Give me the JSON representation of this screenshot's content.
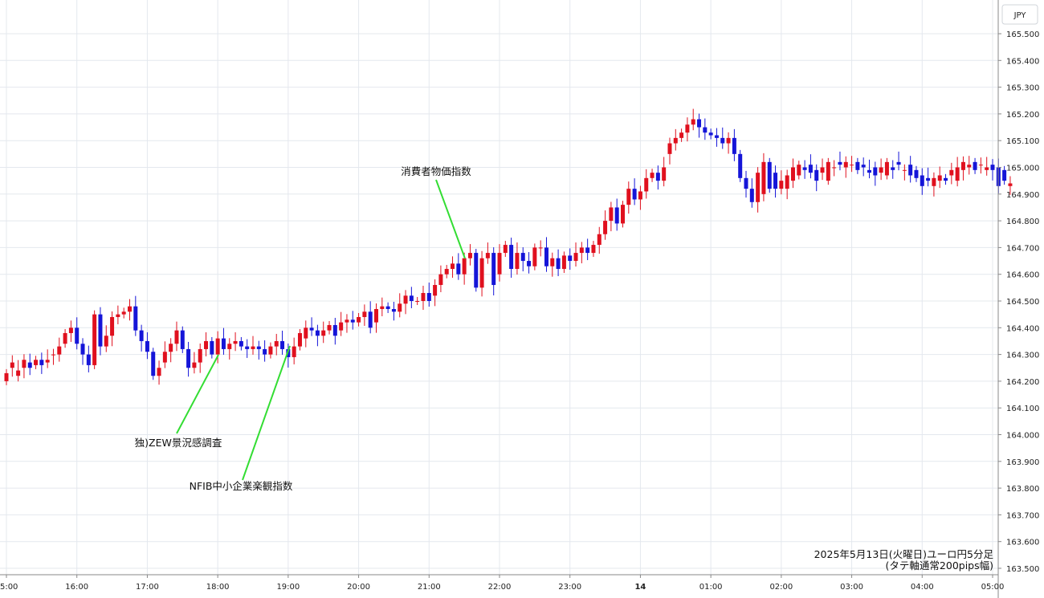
{
  "chart_data": {
    "type": "candlestick",
    "title": "2025年5月13日(火曜日)ユーロ円5分足",
    "subtitle": "(タテ軸通常200pips幅)",
    "currency_label": "JPY",
    "ylim": [
      163.45,
      165.65
    ],
    "y_ticks": [
      "165.500",
      "165.400",
      "165.300",
      "165.200",
      "165.100",
      "165.000",
      "164.900",
      "164.800",
      "164.700",
      "164.600",
      "164.500",
      "164.400",
      "164.300",
      "164.200",
      "164.100",
      "164.000",
      "163.900",
      "163.800",
      "163.700",
      "163.600",
      "163.500"
    ],
    "x_ticks": [
      "15:00",
      "16:00",
      "17:00",
      "18:00",
      "19:00",
      "20:00",
      "21:00",
      "22:00",
      "23:00",
      "14",
      "01:00",
      "02:00",
      "03:00",
      "04:00",
      "05:00"
    ],
    "grid": true,
    "colors": {
      "up": "#e0101e",
      "down": "#1515d8",
      "grid": "#e4e8ee",
      "annotation_line": "#33dd33"
    },
    "annotations": [
      {
        "label": "独)ZEW景況感調査",
        "time": "18:00"
      },
      {
        "label": "NFIB中小企業楽観指数",
        "time": "19:00"
      },
      {
        "label": "消費者物価指数",
        "time": "21:30"
      }
    ],
    "ohlc_close": [
      164.23,
      164.27,
      164.24,
      164.28,
      164.25,
      164.28,
      164.26,
      164.28,
      164.3,
      164.33,
      164.38,
      164.4,
      164.34,
      164.3,
      164.26,
      164.45,
      164.33,
      164.37,
      164.44,
      164.45,
      164.46,
      164.48,
      164.39,
      164.35,
      164.31,
      164.22,
      164.25,
      164.31,
      164.34,
      164.39,
      164.32,
      164.25,
      164.27,
      164.32,
      164.35,
      164.3,
      164.36,
      164.32,
      164.34,
      164.35,
      164.33,
      164.32,
      164.33,
      164.32,
      164.3,
      164.33,
      164.35,
      164.32,
      164.29,
      164.33,
      164.38,
      164.4,
      164.39,
      164.37,
      164.39,
      164.41,
      164.37,
      164.42,
      164.43,
      164.42,
      164.44,
      164.46,
      164.4,
      164.47,
      164.48,
      164.47,
      164.46,
      164.49,
      164.52,
      164.5,
      164.5,
      164.53,
      164.5,
      164.56,
      164.6,
      164.62,
      164.64,
      164.6,
      164.66,
      164.68,
      164.55,
      164.66,
      164.68,
      164.56,
      164.68,
      164.71,
      164.62,
      164.68,
      164.65,
      164.63,
      164.7,
      164.7,
      164.63,
      164.66,
      164.62,
      164.67,
      164.65,
      164.68,
      164.7,
      164.68,
      164.71,
      164.75,
      164.8,
      164.85,
      164.79,
      164.86,
      164.92,
      164.88,
      164.91,
      164.96,
      164.98,
      164.95,
      165.0,
      165.09,
      165.11,
      165.13,
      165.16,
      165.18,
      165.15,
      165.13,
      165.12,
      165.11,
      165.09,
      165.11,
      165.05,
      164.96,
      164.92,
      164.87,
      164.98,
      165.02,
      164.92,
      164.92,
      164.95,
      164.97,
      165.0,
      165.01,
      164.99,
      164.98,
      164.95,
      165.0,
      165.02,
      165.0,
      165.01,
      165.02,
      165.01,
      164.99,
      165.0,
      164.98,
      164.97,
      165.0,
      165.02,
      164.99,
      165.01,
      164.99,
      164.97,
      164.96,
      164.93,
      164.95,
      164.96,
      164.97,
      164.95,
      164.99,
      165.0,
      165.02,
      165.01,
      164.99,
      165.01,
      165.0,
      164.99,
      164.93,
      164.95,
      164.94
    ],
    "ohlc_open": [
      164.2,
      164.25,
      164.22,
      164.25,
      164.27,
      164.26,
      164.28,
      164.27,
      164.3,
      164.3,
      164.34,
      164.38,
      164.4,
      164.34,
      164.3,
      164.26,
      164.45,
      164.33,
      164.37,
      164.44,
      164.45,
      164.46,
      164.48,
      164.39,
      164.35,
      164.31,
      164.22,
      164.27,
      164.31,
      164.34,
      164.39,
      164.32,
      164.25,
      164.27,
      164.32,
      164.35,
      164.3,
      164.36,
      164.32,
      164.34,
      164.35,
      164.33,
      164.32,
      164.33,
      164.32,
      164.3,
      164.33,
      164.35,
      164.32,
      164.29,
      164.33,
      164.36,
      164.4,
      164.39,
      164.37,
      164.39,
      164.41,
      164.39,
      164.42,
      164.43,
      164.42,
      164.44,
      164.46,
      164.42,
      164.47,
      164.48,
      164.47,
      164.46,
      164.49,
      164.52,
      164.5,
      164.5,
      164.53,
      164.52,
      164.56,
      164.6,
      164.62,
      164.64,
      164.6,
      164.66,
      164.68,
      164.55,
      164.66,
      164.68,
      164.6,
      164.68,
      164.71,
      164.62,
      164.68,
      164.65,
      164.63,
      164.7,
      164.7,
      164.63,
      164.66,
      164.62,
      164.67,
      164.65,
      164.68,
      164.7,
      164.68,
      164.71,
      164.75,
      164.8,
      164.85,
      164.79,
      164.86,
      164.92,
      164.88,
      164.91,
      164.96,
      164.98,
      164.95,
      165.05,
      165.09,
      165.11,
      165.13,
      165.16,
      165.18,
      165.15,
      165.13,
      165.12,
      165.11,
      165.09,
      165.11,
      165.05,
      164.96,
      164.92,
      164.87,
      164.9,
      165.02,
      164.98,
      164.92,
      164.92,
      164.95,
      164.97,
      165.0,
      165.01,
      164.99,
      164.98,
      164.95,
      165.0,
      165.02,
      165.0,
      165.01,
      165.02,
      165.01,
      164.99,
      165.0,
      164.98,
      164.97,
      165.0,
      165.02,
      164.99,
      165.01,
      164.99,
      164.97,
      164.96,
      164.93,
      164.95,
      164.96,
      164.97,
      164.95,
      164.99,
      165.0,
      165.02,
      165.01,
      164.99,
      165.01,
      165.0,
      164.99,
      164.93,
      164.95
    ]
  }
}
